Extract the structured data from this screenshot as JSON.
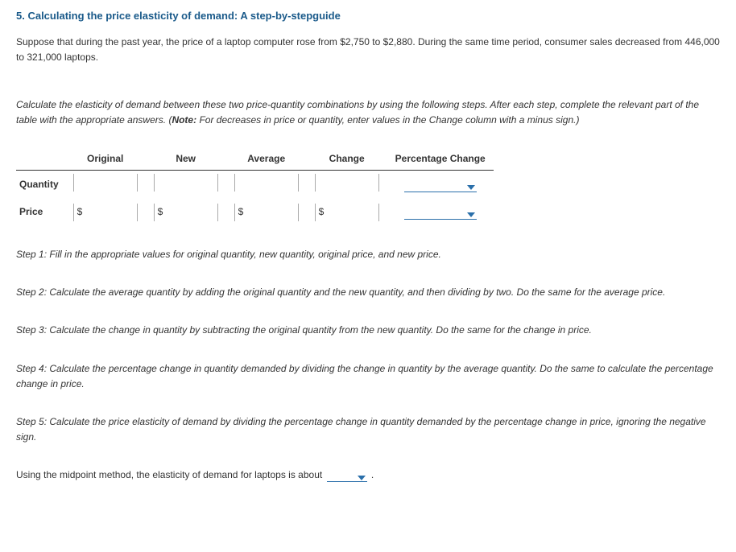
{
  "heading": "5. Calculating the price elasticity of demand: A step-by-stepguide",
  "intro": "Suppose that during the past year, the price of a laptop computer rose from $2,750 to $2,880. During the same time period, consumer sales decreased from 446,000 to 321,000 laptops.",
  "instruction_line1": "Calculate the elasticity of demand between these two price-quantity combinations by using the following steps. After each step, complete the relevant part of the table with the appropriate answers. (",
  "instruction_note_label": "Note:",
  "instruction_note_text": " For decreases in price or quantity, enter values in the Change column with a minus sign.)",
  "table": {
    "headers": {
      "original": "Original",
      "new": "New",
      "average": "Average",
      "change": "Change",
      "pctchange": "Percentage Change"
    },
    "rows": {
      "quantity": "Quantity",
      "price": "Price"
    },
    "prefix_dollar": "$"
  },
  "steps": {
    "s1": "Step 1: Fill in the appropriate values for original quantity, new quantity, original price, and new price.",
    "s2": "Step 2: Calculate the average quantity by adding the original quantity and the new quantity, and then dividing by two. Do the same for the average price.",
    "s3": "Step 3: Calculate the change in quantity by subtracting the original quantity from the new quantity. Do the same for the change in price.",
    "s4": "Step 4: Calculate the percentage change in quantity demanded by dividing the change in quantity by the average quantity. Do the same to calculate the percentage change in price.",
    "s5": "Step 5: Calculate the price elasticity of demand by dividing the percentage change in quantity demanded by the percentage change in price, ignoring the negative sign."
  },
  "final_before": "Using the midpoint method, the elasticity of demand for laptops is about ",
  "final_after": " .",
  "colors": {
    "heading": "#1a5a8a",
    "dropdown": "#2a6faa"
  }
}
